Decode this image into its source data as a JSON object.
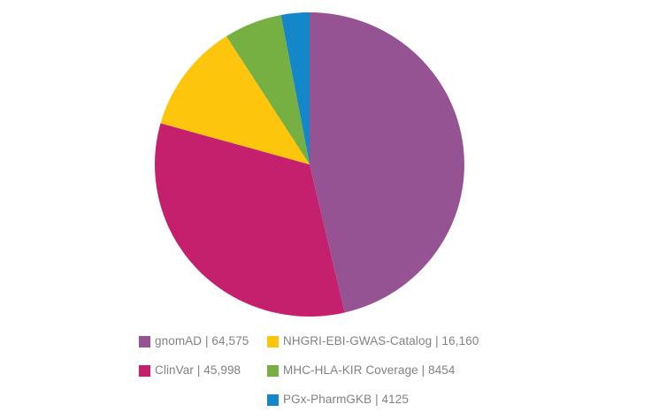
{
  "chart_data": {
    "type": "pie",
    "title": "",
    "categories": [
      "gnomAD",
      "ClinVar",
      "NHGRI-EBI-GWAS-Catalog",
      "MHC-HLA-KIR Coverage",
      "PGx-PharmGKB"
    ],
    "values": [
      64575,
      45998,
      16160,
      8454,
      4125
    ],
    "colors": [
      "#965394",
      "#C5206E",
      "#FDC50C",
      "#76B043",
      "#1487C8"
    ],
    "start_angle": "top",
    "direction": "clockwise",
    "legend_position": "bottom",
    "legend": [
      {
        "text": "gnomAD | 64,575",
        "color": "#965394"
      },
      {
        "text": "ClinVar | 45,998",
        "color": "#C5206E"
      },
      {
        "text": "NHGRI-EBI-GWAS-Catalog | 16,160",
        "color": "#FDC50C"
      },
      {
        "text": "MHC-HLA-KIR Coverage | 8454",
        "color": "#76B043"
      },
      {
        "text": "PGx-PharmGKB | 4125",
        "color": "#1487C8"
      }
    ]
  }
}
